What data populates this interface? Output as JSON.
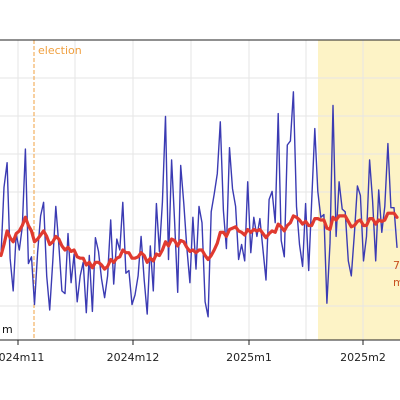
{
  "chart_data": {
    "type": "line",
    "title": "",
    "xlabel": "",
    "ylabel": "",
    "grid": true,
    "x_tick_labels": [
      "2024m11",
      "2024m12",
      "2025m1",
      "2025m2"
    ],
    "series": [
      {
        "name": "",
        "color": "#3b3bb3",
        "values": [
          222,
          272,
          290,
          220,
          196,
          238,
          226,
          243,
          300,
          216,
          221,
          186,
          224,
          251,
          261,
          207,
          182,
          218,
          258,
          229,
          196,
          194,
          238,
          202,
          223,
          188,
          207,
          217,
          180,
          222,
          181,
          235,
          225,
          205,
          191,
          207,
          248,
          201,
          234,
          226,
          261,
          209,
          211,
          186,
          193,
          207,
          236,
          204,
          179,
          229,
          196,
          260,
          225,
          261,
          324,
          219,
          292,
          247,
          195,
          288,
          260,
          228,
          202,
          250,
          212,
          258,
          246,
          188,
          177,
          254,
          267,
          282,
          320,
          255,
          227,
          301,
          271,
          258,
          219,
          230,
          218,
          276,
          224,
          250,
          236,
          249,
          226,
          204,
          263,
          269,
          246,
          326,
          233,
          221,
          303,
          306,
          342,
          258,
          230,
          214,
          260,
          211,
          262,
          315,
          269,
          250,
          252,
          187,
          231,
          332,
          236,
          276,
          256,
          254,
          218,
          207,
          238,
          273,
          266,
          218,
          236,
          292,
          262,
          218,
          270,
          239,
          258,
          304,
          257,
          257,
          228
        ]
      },
      {
        "name": "",
        "color": "#e03a30",
        "values": [
          222,
          230,
          240,
          235,
          232,
          238,
          240,
          244,
          250,
          244,
          240,
          232,
          234,
          237,
          240,
          236,
          230,
          232,
          236,
          234,
          229,
          226,
          228,
          225,
          226,
          221,
          220,
          220,
          215,
          217,
          213,
          217,
          217,
          215,
          212,
          214,
          219,
          217,
          220,
          221,
          226,
          224,
          224,
          220,
          220,
          221,
          224,
          222,
          217,
          220,
          218,
          223,
          222,
          226,
          232,
          229,
          234,
          233,
          229,
          233,
          232,
          228,
          225,
          226,
          224,
          226,
          226,
          222,
          219,
          222,
          226,
          231,
          239,
          239,
          236,
          241,
          242,
          243,
          240,
          239,
          237,
          241,
          239,
          241,
          240,
          241,
          238,
          235,
          238,
          240,
          239,
          245,
          243,
          240,
          244,
          246,
          251,
          250,
          248,
          245,
          247,
          244,
          244,
          249,
          249,
          248,
          248,
          242,
          241,
          250,
          248,
          251,
          251,
          251,
          247,
          243,
          244,
          247,
          248,
          244,
          244,
          249,
          249,
          245,
          248,
          247,
          248,
          253,
          253,
          253,
          250
        ]
      }
    ],
    "annotations": {
      "election_label": "election",
      "partial_label_right_top": "7",
      "partial_label_right_bottom": "m",
      "partial_label_left": "m"
    },
    "colors": {
      "election_line": "#f0a040",
      "highlight_band": "#fdf3c6",
      "axis": "#222222",
      "grid": "#e6e6e6",
      "annotation_text": "#c85020"
    }
  }
}
